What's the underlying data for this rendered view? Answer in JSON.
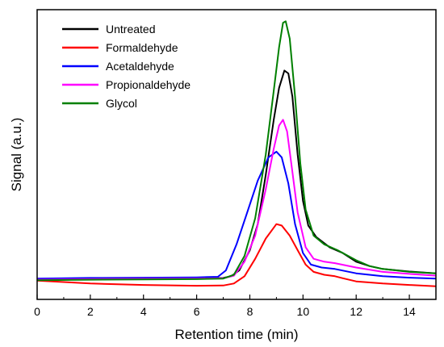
{
  "chart_data": {
    "type": "line",
    "title": "",
    "xlabel": "Retention time (min)",
    "ylabel": "Signal (a.u.)",
    "xlim": [
      0,
      15
    ],
    "ylim": [
      0,
      1
    ],
    "x_ticks": [
      0,
      2,
      4,
      6,
      8,
      10,
      12,
      14
    ],
    "y_ticks_shown": false,
    "grid": false,
    "legend_position": "top-left",
    "series": [
      {
        "name": "Untreated",
        "color": "#000000",
        "points": [
          [
            0,
            0.068
          ],
          [
            2,
            0.071
          ],
          [
            4,
            0.072
          ],
          [
            6,
            0.073
          ],
          [
            7,
            0.074
          ],
          [
            7.3,
            0.08
          ],
          [
            7.6,
            0.1
          ],
          [
            8,
            0.17
          ],
          [
            8.3,
            0.26
          ],
          [
            8.6,
            0.43
          ],
          [
            8.9,
            0.62
          ],
          [
            9.1,
            0.73
          ],
          [
            9.3,
            0.79
          ],
          [
            9.45,
            0.78
          ],
          [
            9.6,
            0.7
          ],
          [
            9.8,
            0.5
          ],
          [
            10.0,
            0.34
          ],
          [
            10.2,
            0.255
          ],
          [
            10.5,
            0.215
          ],
          [
            11,
            0.18
          ],
          [
            11.5,
            0.16
          ],
          [
            12,
            0.13
          ],
          [
            12.5,
            0.115
          ],
          [
            13,
            0.105
          ],
          [
            14,
            0.096
          ],
          [
            15,
            0.09
          ]
        ]
      },
      {
        "name": "Formaldehyde",
        "color": "#ff0000",
        "points": [
          [
            0,
            0.065
          ],
          [
            2,
            0.055
          ],
          [
            4,
            0.05
          ],
          [
            6,
            0.047
          ],
          [
            7,
            0.048
          ],
          [
            7.4,
            0.055
          ],
          [
            7.8,
            0.08
          ],
          [
            8.2,
            0.14
          ],
          [
            8.6,
            0.21
          ],
          [
            9.0,
            0.26
          ],
          [
            9.2,
            0.255
          ],
          [
            9.5,
            0.22
          ],
          [
            9.8,
            0.17
          ],
          [
            10.1,
            0.12
          ],
          [
            10.4,
            0.095
          ],
          [
            10.8,
            0.085
          ],
          [
            11.2,
            0.08
          ],
          [
            11.5,
            0.073
          ],
          [
            12,
            0.062
          ],
          [
            13,
            0.055
          ],
          [
            14,
            0.05
          ],
          [
            15,
            0.045
          ]
        ]
      },
      {
        "name": "Acetaldehyde",
        "color": "#0000ff",
        "points": [
          [
            0,
            0.072
          ],
          [
            2,
            0.074
          ],
          [
            4,
            0.075
          ],
          [
            6,
            0.076
          ],
          [
            6.8,
            0.078
          ],
          [
            7.1,
            0.1
          ],
          [
            7.5,
            0.19
          ],
          [
            7.9,
            0.3
          ],
          [
            8.3,
            0.41
          ],
          [
            8.7,
            0.49
          ],
          [
            9.0,
            0.51
          ],
          [
            9.2,
            0.49
          ],
          [
            9.45,
            0.4
          ],
          [
            9.7,
            0.26
          ],
          [
            10.0,
            0.16
          ],
          [
            10.3,
            0.12
          ],
          [
            10.7,
            0.11
          ],
          [
            11.2,
            0.105
          ],
          [
            12,
            0.09
          ],
          [
            13,
            0.08
          ],
          [
            14,
            0.075
          ],
          [
            15,
            0.072
          ]
        ]
      },
      {
        "name": "Propionaldehyde",
        "color": "#ff00ff",
        "points": [
          [
            0,
            0.068
          ],
          [
            2,
            0.07
          ],
          [
            4,
            0.071
          ],
          [
            6,
            0.072
          ],
          [
            7,
            0.073
          ],
          [
            7.4,
            0.082
          ],
          [
            7.8,
            0.13
          ],
          [
            8.2,
            0.22
          ],
          [
            8.6,
            0.38
          ],
          [
            8.9,
            0.52
          ],
          [
            9.1,
            0.6
          ],
          [
            9.25,
            0.62
          ],
          [
            9.4,
            0.58
          ],
          [
            9.6,
            0.44
          ],
          [
            9.8,
            0.3
          ],
          [
            10.1,
            0.18
          ],
          [
            10.4,
            0.14
          ],
          [
            10.8,
            0.13
          ],
          [
            11.2,
            0.125
          ],
          [
            12,
            0.11
          ],
          [
            13,
            0.095
          ],
          [
            14,
            0.088
          ],
          [
            15,
            0.082
          ]
        ]
      },
      {
        "name": "Glycol",
        "color": "#008000",
        "points": [
          [
            0,
            0.066
          ],
          [
            2,
            0.068
          ],
          [
            4,
            0.069
          ],
          [
            6,
            0.07
          ],
          [
            7,
            0.072
          ],
          [
            7.4,
            0.085
          ],
          [
            7.8,
            0.15
          ],
          [
            8.2,
            0.28
          ],
          [
            8.6,
            0.5
          ],
          [
            8.9,
            0.72
          ],
          [
            9.1,
            0.87
          ],
          [
            9.25,
            0.955
          ],
          [
            9.35,
            0.96
          ],
          [
            9.5,
            0.9
          ],
          [
            9.7,
            0.7
          ],
          [
            9.9,
            0.47
          ],
          [
            10.1,
            0.31
          ],
          [
            10.4,
            0.22
          ],
          [
            10.8,
            0.19
          ],
          [
            11.3,
            0.17
          ],
          [
            12,
            0.135
          ],
          [
            12.5,
            0.115
          ],
          [
            13,
            0.105
          ],
          [
            14,
            0.095
          ],
          [
            15,
            0.09
          ]
        ]
      }
    ]
  }
}
